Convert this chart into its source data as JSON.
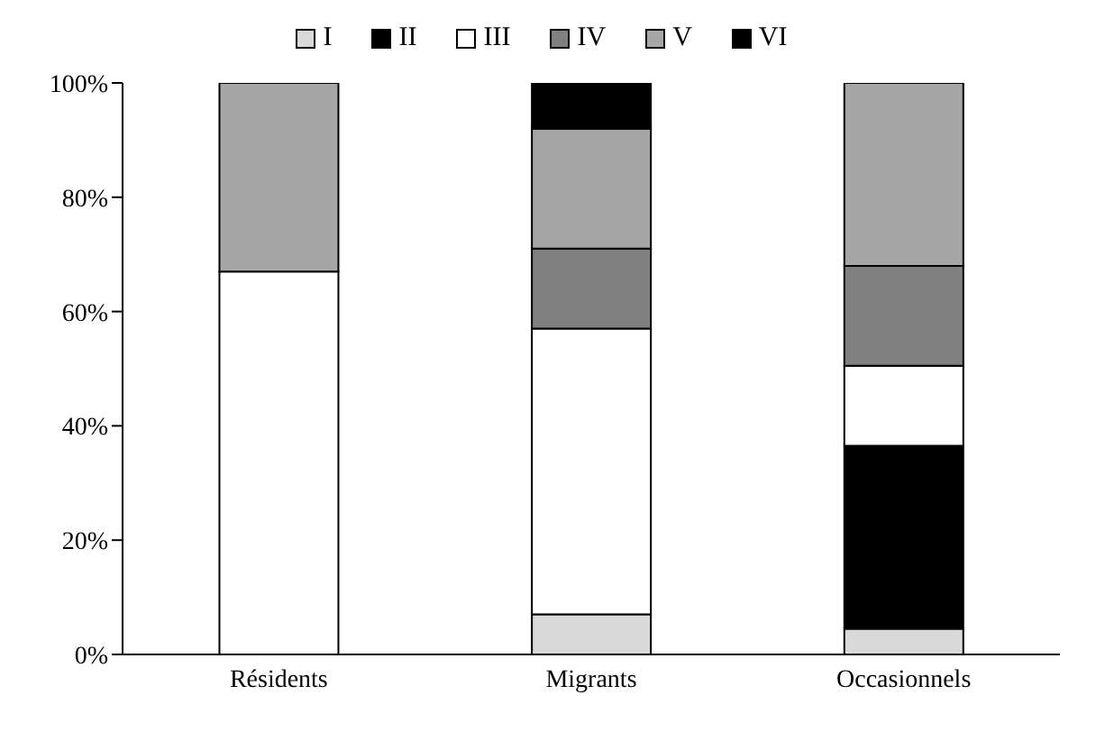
{
  "chart_data": {
    "type": "bar",
    "stacked": true,
    "categories": [
      "Résidents",
      "Migrants",
      "Occasionnels"
    ],
    "series": [
      {
        "name": "I",
        "color": "#d9d9d9",
        "values": [
          0,
          7,
          4.5
        ]
      },
      {
        "name": "II",
        "color": "#000000",
        "values": [
          0,
          0,
          32
        ]
      },
      {
        "name": "III",
        "color": "#ffffff",
        "values": [
          67,
          50,
          14
        ]
      },
      {
        "name": "IV",
        "color": "#808080",
        "values": [
          0,
          14,
          17.5
        ]
      },
      {
        "name": "V",
        "color": "#a6a6a6",
        "values": [
          33,
          21,
          32
        ]
      },
      {
        "name": "VI",
        "color": "#000000",
        "values": [
          0,
          8,
          0
        ]
      }
    ],
    "ylim": [
      0,
      100
    ],
    "yticks": [
      {
        "value": 0,
        "label": "0%"
      },
      {
        "value": 20,
        "label": "20%"
      },
      {
        "value": 40,
        "label": "40%"
      },
      {
        "value": 60,
        "label": "60%"
      },
      {
        "value": 80,
        "label": "80%"
      },
      {
        "value": 100,
        "label": "100%"
      }
    ],
    "grid": false,
    "legend": "top"
  }
}
